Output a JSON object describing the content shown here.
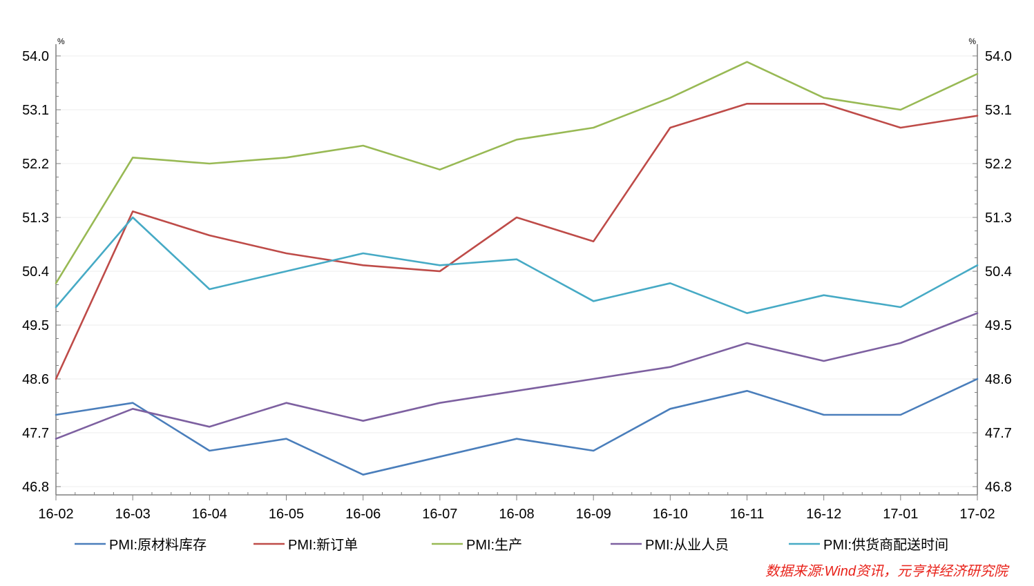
{
  "chart_data": {
    "type": "line",
    "categories": [
      "16-02",
      "16-03",
      "16-04",
      "16-05",
      "16-06",
      "16-07",
      "16-08",
      "16-09",
      "16-10",
      "16-11",
      "16-12",
      "17-01",
      "17-02"
    ],
    "series": [
      {
        "name": "PMI:原材料库存",
        "color": "#4a7ebb",
        "values": [
          48.0,
          48.2,
          47.4,
          47.6,
          47.0,
          47.3,
          47.6,
          47.4,
          48.1,
          48.4,
          48.0,
          48.0,
          48.6
        ]
      },
      {
        "name": "PMI:新订单",
        "color": "#be4b48",
        "values": [
          48.6,
          51.4,
          51.0,
          50.7,
          50.5,
          50.4,
          51.3,
          50.9,
          52.8,
          53.2,
          53.2,
          52.8,
          53.0
        ]
      },
      {
        "name": "PMI:生产",
        "color": "#98b954",
        "values": [
          50.2,
          52.3,
          52.2,
          52.3,
          52.5,
          52.1,
          52.6,
          52.8,
          53.3,
          53.9,
          53.3,
          53.1,
          53.7
        ]
      },
      {
        "name": "PMI:从业人员",
        "color": "#7d60a0",
        "values": [
          47.6,
          48.1,
          47.8,
          48.2,
          47.9,
          48.2,
          48.4,
          48.6,
          48.8,
          49.2,
          48.9,
          49.2,
          49.7
        ]
      },
      {
        "name": "PMI:供货商配送时间",
        "color": "#46aac5",
        "values": [
          49.8,
          51.3,
          50.1,
          50.4,
          50.7,
          50.5,
          50.6,
          49.9,
          50.2,
          49.7,
          50.0,
          49.8,
          50.5
        ]
      }
    ],
    "y_ticks": [
      "46.8",
      "47.7",
      "48.6",
      "49.5",
      "50.4",
      "51.3",
      "52.2",
      "53.1",
      "54.0"
    ],
    "ylim": [
      46.8,
      54.0
    ],
    "y_unit_left": "%",
    "y_unit_right": "%",
    "legend_position": "bottom",
    "grid": true,
    "source": "数据来源:Wind资讯，元亨祥经济研究院"
  }
}
